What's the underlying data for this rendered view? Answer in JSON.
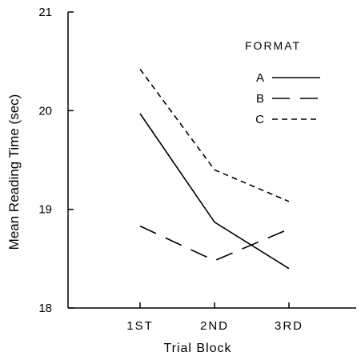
{
  "chart_data": {
    "type": "line",
    "title": "",
    "xlabel": "Trial Block",
    "ylabel": "Mean Reading Time (sec)",
    "categories": [
      "1ST",
      "2ND",
      "3RD"
    ],
    "ylim": [
      18,
      21
    ],
    "yticks": [
      18,
      19,
      20,
      21
    ],
    "grid": false,
    "legend": {
      "title": "FORMAT",
      "placement": "top-right"
    },
    "series": [
      {
        "name": "A",
        "values": [
          19.97,
          18.87,
          18.4
        ],
        "dash": "solid",
        "color": "#000000"
      },
      {
        "name": "B",
        "values": [
          18.83,
          18.48,
          18.8
        ],
        "dash": "dashed",
        "color": "#000000"
      },
      {
        "name": "C",
        "values": [
          20.42,
          19.4,
          19.08
        ],
        "dash": "dotted",
        "color": "#000000"
      }
    ]
  }
}
